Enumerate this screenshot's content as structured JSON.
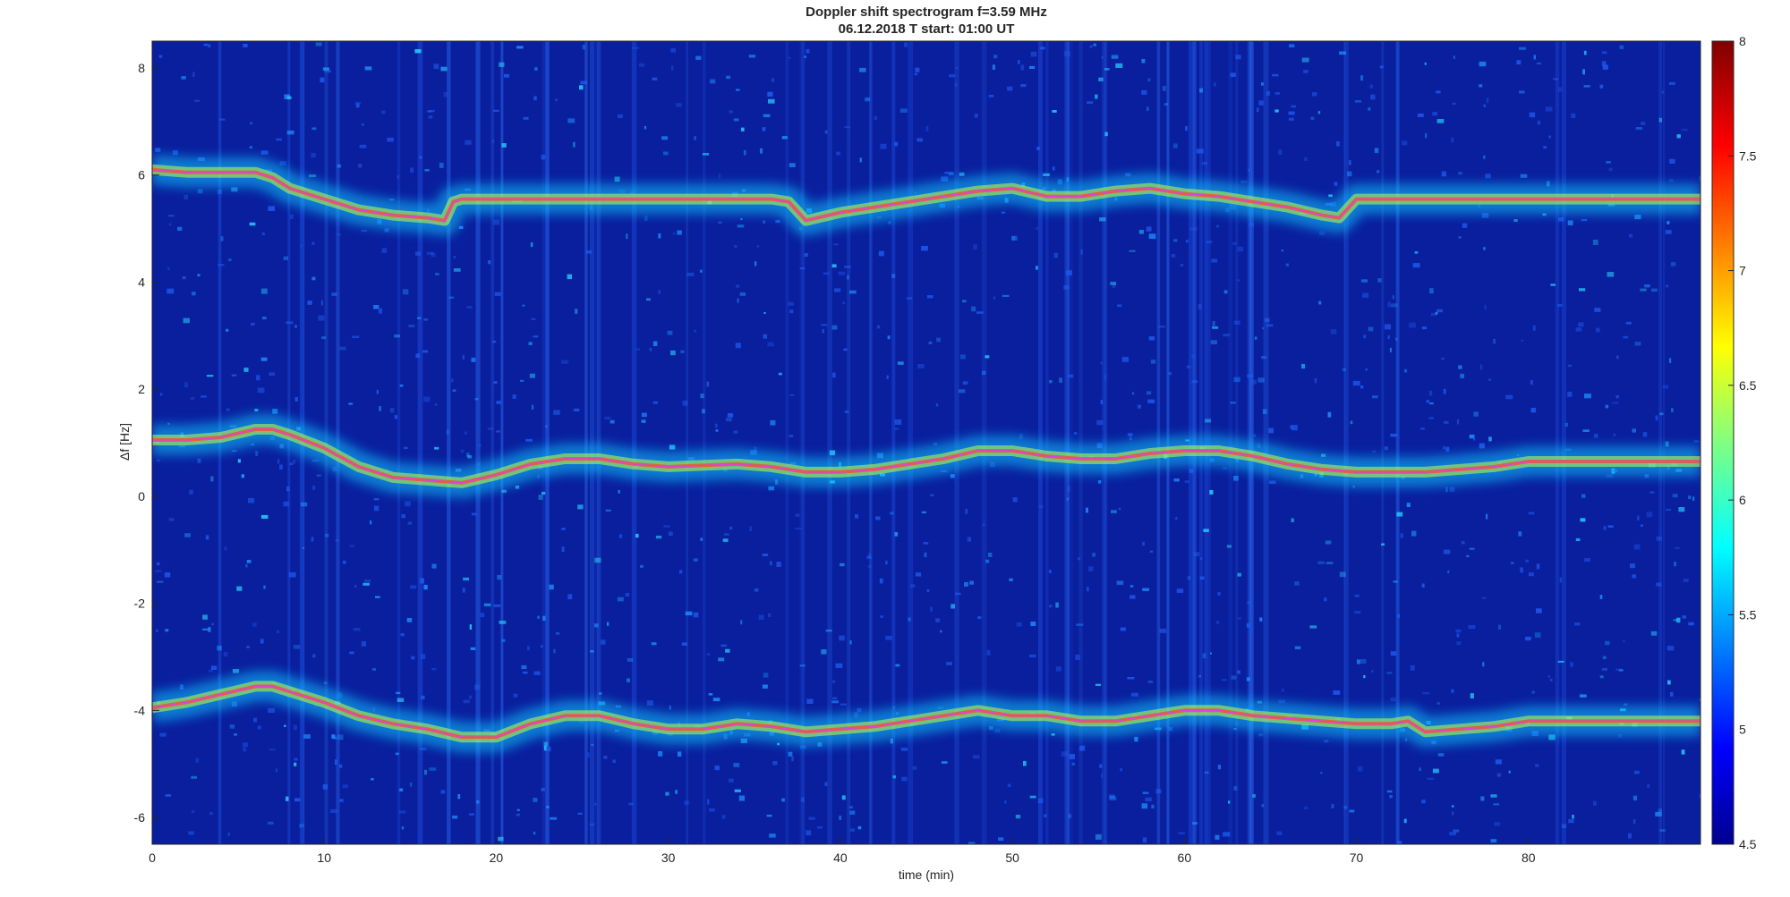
{
  "chart_data": {
    "type": "heatmap",
    "title": "Doppler shift spectrogram f=3.59 MHz",
    "subtitle": "06.12.2018   T start: 01:00 UT",
    "xlabel": "time (min)",
    "ylabel": "Δf [Hz]",
    "xlim": [
      0,
      90
    ],
    "ylim": [
      -6.5,
      8.5
    ],
    "xticks": [
      0,
      10,
      20,
      30,
      40,
      50,
      60,
      70,
      80
    ],
    "yticks": [
      -6,
      -4,
      -2,
      0,
      2,
      4,
      6,
      8
    ],
    "colormap": "jet",
    "colorbar": {
      "range": [
        4.5,
        8
      ],
      "ticks": [
        4.5,
        5,
        5.5,
        6,
        6.5,
        7,
        7.5,
        8
      ]
    },
    "trace_color": "#e040e0",
    "traces": [
      {
        "x": [
          0,
          2,
          4,
          6,
          7,
          8,
          10,
          12,
          14,
          16,
          17,
          17.5,
          18,
          22,
          28,
          30,
          36,
          37,
          38,
          40,
          44,
          48,
          50,
          52,
          54,
          56,
          58,
          60,
          62,
          64,
          66,
          68,
          69,
          70,
          75,
          80,
          85,
          90
        ],
        "y": [
          6.1,
          6.05,
          6.05,
          6.05,
          5.95,
          5.75,
          5.55,
          5.35,
          5.25,
          5.2,
          5.15,
          5.5,
          5.55,
          5.55,
          5.55,
          5.55,
          5.55,
          5.5,
          5.15,
          5.3,
          5.5,
          5.7,
          5.75,
          5.6,
          5.6,
          5.7,
          5.75,
          5.65,
          5.6,
          5.5,
          5.4,
          5.25,
          5.2,
          5.55,
          5.55,
          5.55,
          5.55,
          5.55
        ]
      },
      {
        "x": [
          0,
          2,
          4,
          6,
          7,
          8,
          10,
          12,
          14,
          16,
          18,
          20,
          22,
          24,
          26,
          28,
          30,
          34,
          36,
          38,
          40,
          42,
          44,
          46,
          48,
          50,
          52,
          54,
          56,
          58,
          60,
          62,
          64,
          66,
          68,
          70,
          72,
          74,
          76,
          78,
          80,
          85,
          90
        ],
        "y": [
          1.05,
          1.05,
          1.1,
          1.25,
          1.25,
          1.15,
          0.9,
          0.55,
          0.35,
          0.3,
          0.25,
          0.4,
          0.6,
          0.7,
          0.7,
          0.6,
          0.55,
          0.6,
          0.55,
          0.45,
          0.45,
          0.5,
          0.6,
          0.7,
          0.85,
          0.85,
          0.75,
          0.7,
          0.7,
          0.8,
          0.85,
          0.85,
          0.75,
          0.6,
          0.5,
          0.45,
          0.45,
          0.45,
          0.5,
          0.55,
          0.65,
          0.65,
          0.65
        ]
      },
      {
        "x": [
          0,
          2,
          4,
          6,
          7,
          8,
          10,
          12,
          14,
          16,
          18,
          20,
          22,
          24,
          26,
          28,
          30,
          32,
          34,
          36,
          38,
          40,
          42,
          44,
          46,
          48,
          50,
          52,
          54,
          56,
          58,
          60,
          62,
          64,
          66,
          68,
          70,
          72,
          73,
          74,
          76,
          78,
          80,
          85,
          90
        ],
        "y": [
          -3.95,
          -3.85,
          -3.7,
          -3.55,
          -3.55,
          -3.65,
          -3.85,
          -4.1,
          -4.25,
          -4.35,
          -4.5,
          -4.5,
          -4.25,
          -4.1,
          -4.1,
          -4.25,
          -4.35,
          -4.35,
          -4.25,
          -4.3,
          -4.4,
          -4.35,
          -4.3,
          -4.2,
          -4.1,
          -4.0,
          -4.1,
          -4.1,
          -4.2,
          -4.2,
          -4.1,
          -4.0,
          -4.0,
          -4.1,
          -4.15,
          -4.2,
          -4.25,
          -4.25,
          -4.2,
          -4.4,
          -4.35,
          -4.3,
          -4.2,
          -4.2,
          -4.2
        ]
      }
    ]
  }
}
